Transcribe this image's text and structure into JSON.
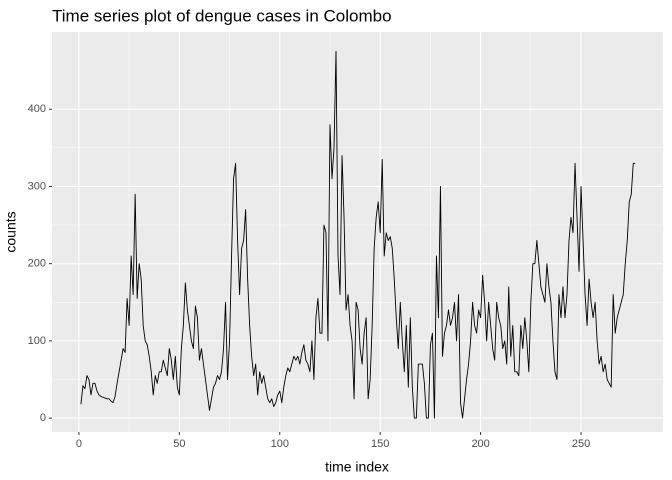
{
  "chart_data": {
    "type": "line",
    "title": "Time series plot of dengue cases in Colombo",
    "x_label": "time index",
    "y_label": "counts",
    "xlim": [
      -13.4,
      290.8
    ],
    "ylim": [
      -18,
      500
    ],
    "xticks": [
      0,
      50,
      100,
      150,
      200,
      250
    ],
    "yticks": [
      0,
      100,
      200,
      300,
      400
    ],
    "grid": true,
    "x": [
      1,
      2,
      3,
      4,
      5,
      6,
      7,
      8,
      9,
      10,
      11,
      12,
      13,
      14,
      15,
      16,
      17,
      18,
      19,
      20,
      21,
      22,
      23,
      24,
      25,
      26,
      27,
      28,
      29,
      30,
      31,
      32,
      33,
      34,
      35,
      36,
      37,
      38,
      39,
      40,
      41,
      42,
      43,
      44,
      45,
      46,
      47,
      48,
      49,
      50,
      51,
      52,
      53,
      54,
      55,
      56,
      57,
      58,
      59,
      60,
      61,
      62,
      63,
      64,
      65,
      66,
      67,
      68,
      69,
      70,
      71,
      72,
      73,
      74,
      75,
      76,
      77,
      78,
      79,
      80,
      81,
      82,
      83,
      84,
      85,
      86,
      87,
      88,
      89,
      90,
      91,
      92,
      93,
      94,
      95,
      96,
      97,
      98,
      99,
      100,
      101,
      102,
      103,
      104,
      105,
      106,
      107,
      108,
      109,
      110,
      111,
      112,
      113,
      114,
      115,
      116,
      117,
      118,
      119,
      120,
      121,
      122,
      123,
      124,
      125,
      126,
      127,
      128,
      129,
      130,
      131,
      132,
      133,
      134,
      135,
      136,
      137,
      138,
      139,
      140,
      141,
      142,
      143,
      144,
      145,
      146,
      147,
      148,
      149,
      150,
      151,
      152,
      153,
      154,
      155,
      156,
      157,
      158,
      159,
      160,
      161,
      162,
      163,
      164,
      165,
      166,
      167,
      168,
      169,
      170,
      171,
      172,
      173,
      174,
      175,
      176,
      177,
      178,
      179,
      180,
      181,
      182,
      183,
      184,
      185,
      186,
      187,
      188,
      189,
      190,
      191,
      192,
      193,
      194,
      195,
      196,
      197,
      198,
      199,
      200,
      201,
      202,
      203,
      204,
      205,
      206,
      207,
      208,
      209,
      210,
      211,
      212,
      213,
      214,
      215,
      216,
      217,
      218,
      219,
      220,
      221,
      222,
      223,
      224,
      225,
      226,
      227,
      228,
      229,
      230,
      231,
      232,
      233,
      234,
      235,
      236,
      237,
      238,
      239,
      240,
      241,
      242,
      243,
      244,
      245,
      246,
      247,
      248,
      249,
      250,
      251,
      252,
      253,
      254,
      255,
      256,
      257,
      258,
      259,
      260,
      261,
      262,
      263,
      264,
      265,
      266,
      267,
      268,
      269,
      270,
      271,
      272,
      273,
      274,
      275,
      276,
      277
    ],
    "series": [
      {
        "color": "#000000",
        "values": [
          18,
          42,
          38,
          55,
          50,
          30,
          45,
          45,
          35,
          30,
          28,
          27,
          26,
          25,
          25,
          22,
          20,
          28,
          45,
          60,
          75,
          90,
          85,
          155,
          120,
          210,
          160,
          290,
          155,
          200,
          180,
          120,
          100,
          95,
          80,
          60,
          30,
          55,
          45,
          60,
          60,
          75,
          65,
          55,
          90,
          75,
          50,
          80,
          40,
          30,
          90,
          120,
          175,
          140,
          120,
          100,
          90,
          145,
          130,
          75,
          90,
          70,
          50,
          30,
          10,
          25,
          40,
          45,
          55,
          50,
          60,
          90,
          150,
          50,
          100,
          210,
          310,
          330,
          230,
          160,
          220,
          230,
          270,
          180,
          120,
          80,
          55,
          70,
          30,
          60,
          45,
          55,
          40,
          25,
          20,
          25,
          15,
          20,
          30,
          35,
          20,
          40,
          55,
          65,
          60,
          70,
          80,
          75,
          80,
          70,
          85,
          95,
          75,
          70,
          60,
          100,
          50,
          130,
          155,
          110,
          110,
          250,
          240,
          100,
          380,
          310,
          350,
          475,
          210,
          160,
          340,
          260,
          140,
          160,
          120,
          100,
          25,
          150,
          140,
          90,
          70,
          110,
          130,
          25,
          50,
          120,
          220,
          260,
          280,
          240,
          335,
          210,
          240,
          230,
          235,
          220,
          180,
          130,
          90,
          150,
          100,
          60,
          120,
          40,
          130,
          40,
          0,
          0,
          70,
          70,
          70,
          45,
          0,
          0,
          95,
          110,
          0,
          210,
          130,
          300,
          80,
          110,
          120,
          140,
          120,
          130,
          150,
          100,
          160,
          20,
          0,
          25,
          50,
          70,
          100,
          150,
          120,
          110,
          140,
          130,
          185,
          150,
          100,
          150,
          120,
          90,
          75,
          150,
          130,
          120,
          90,
          100,
          70,
          170,
          80,
          120,
          60,
          60,
          55,
          120,
          90,
          130,
          100,
          60,
          150,
          200,
          200,
          230,
          200,
          170,
          160,
          150,
          200,
          170,
          150,
          100,
          60,
          50,
          160,
          130,
          170,
          130,
          160,
          230,
          260,
          240,
          330,
          260,
          190,
          300,
          230,
          160,
          120,
          180,
          150,
          130,
          150,
          100,
          70,
          80,
          60,
          70,
          50,
          45,
          40,
          160,
          110,
          130,
          140,
          150,
          160,
          200,
          230,
          280,
          290,
          330,
          330
        ]
      }
    ]
  }
}
